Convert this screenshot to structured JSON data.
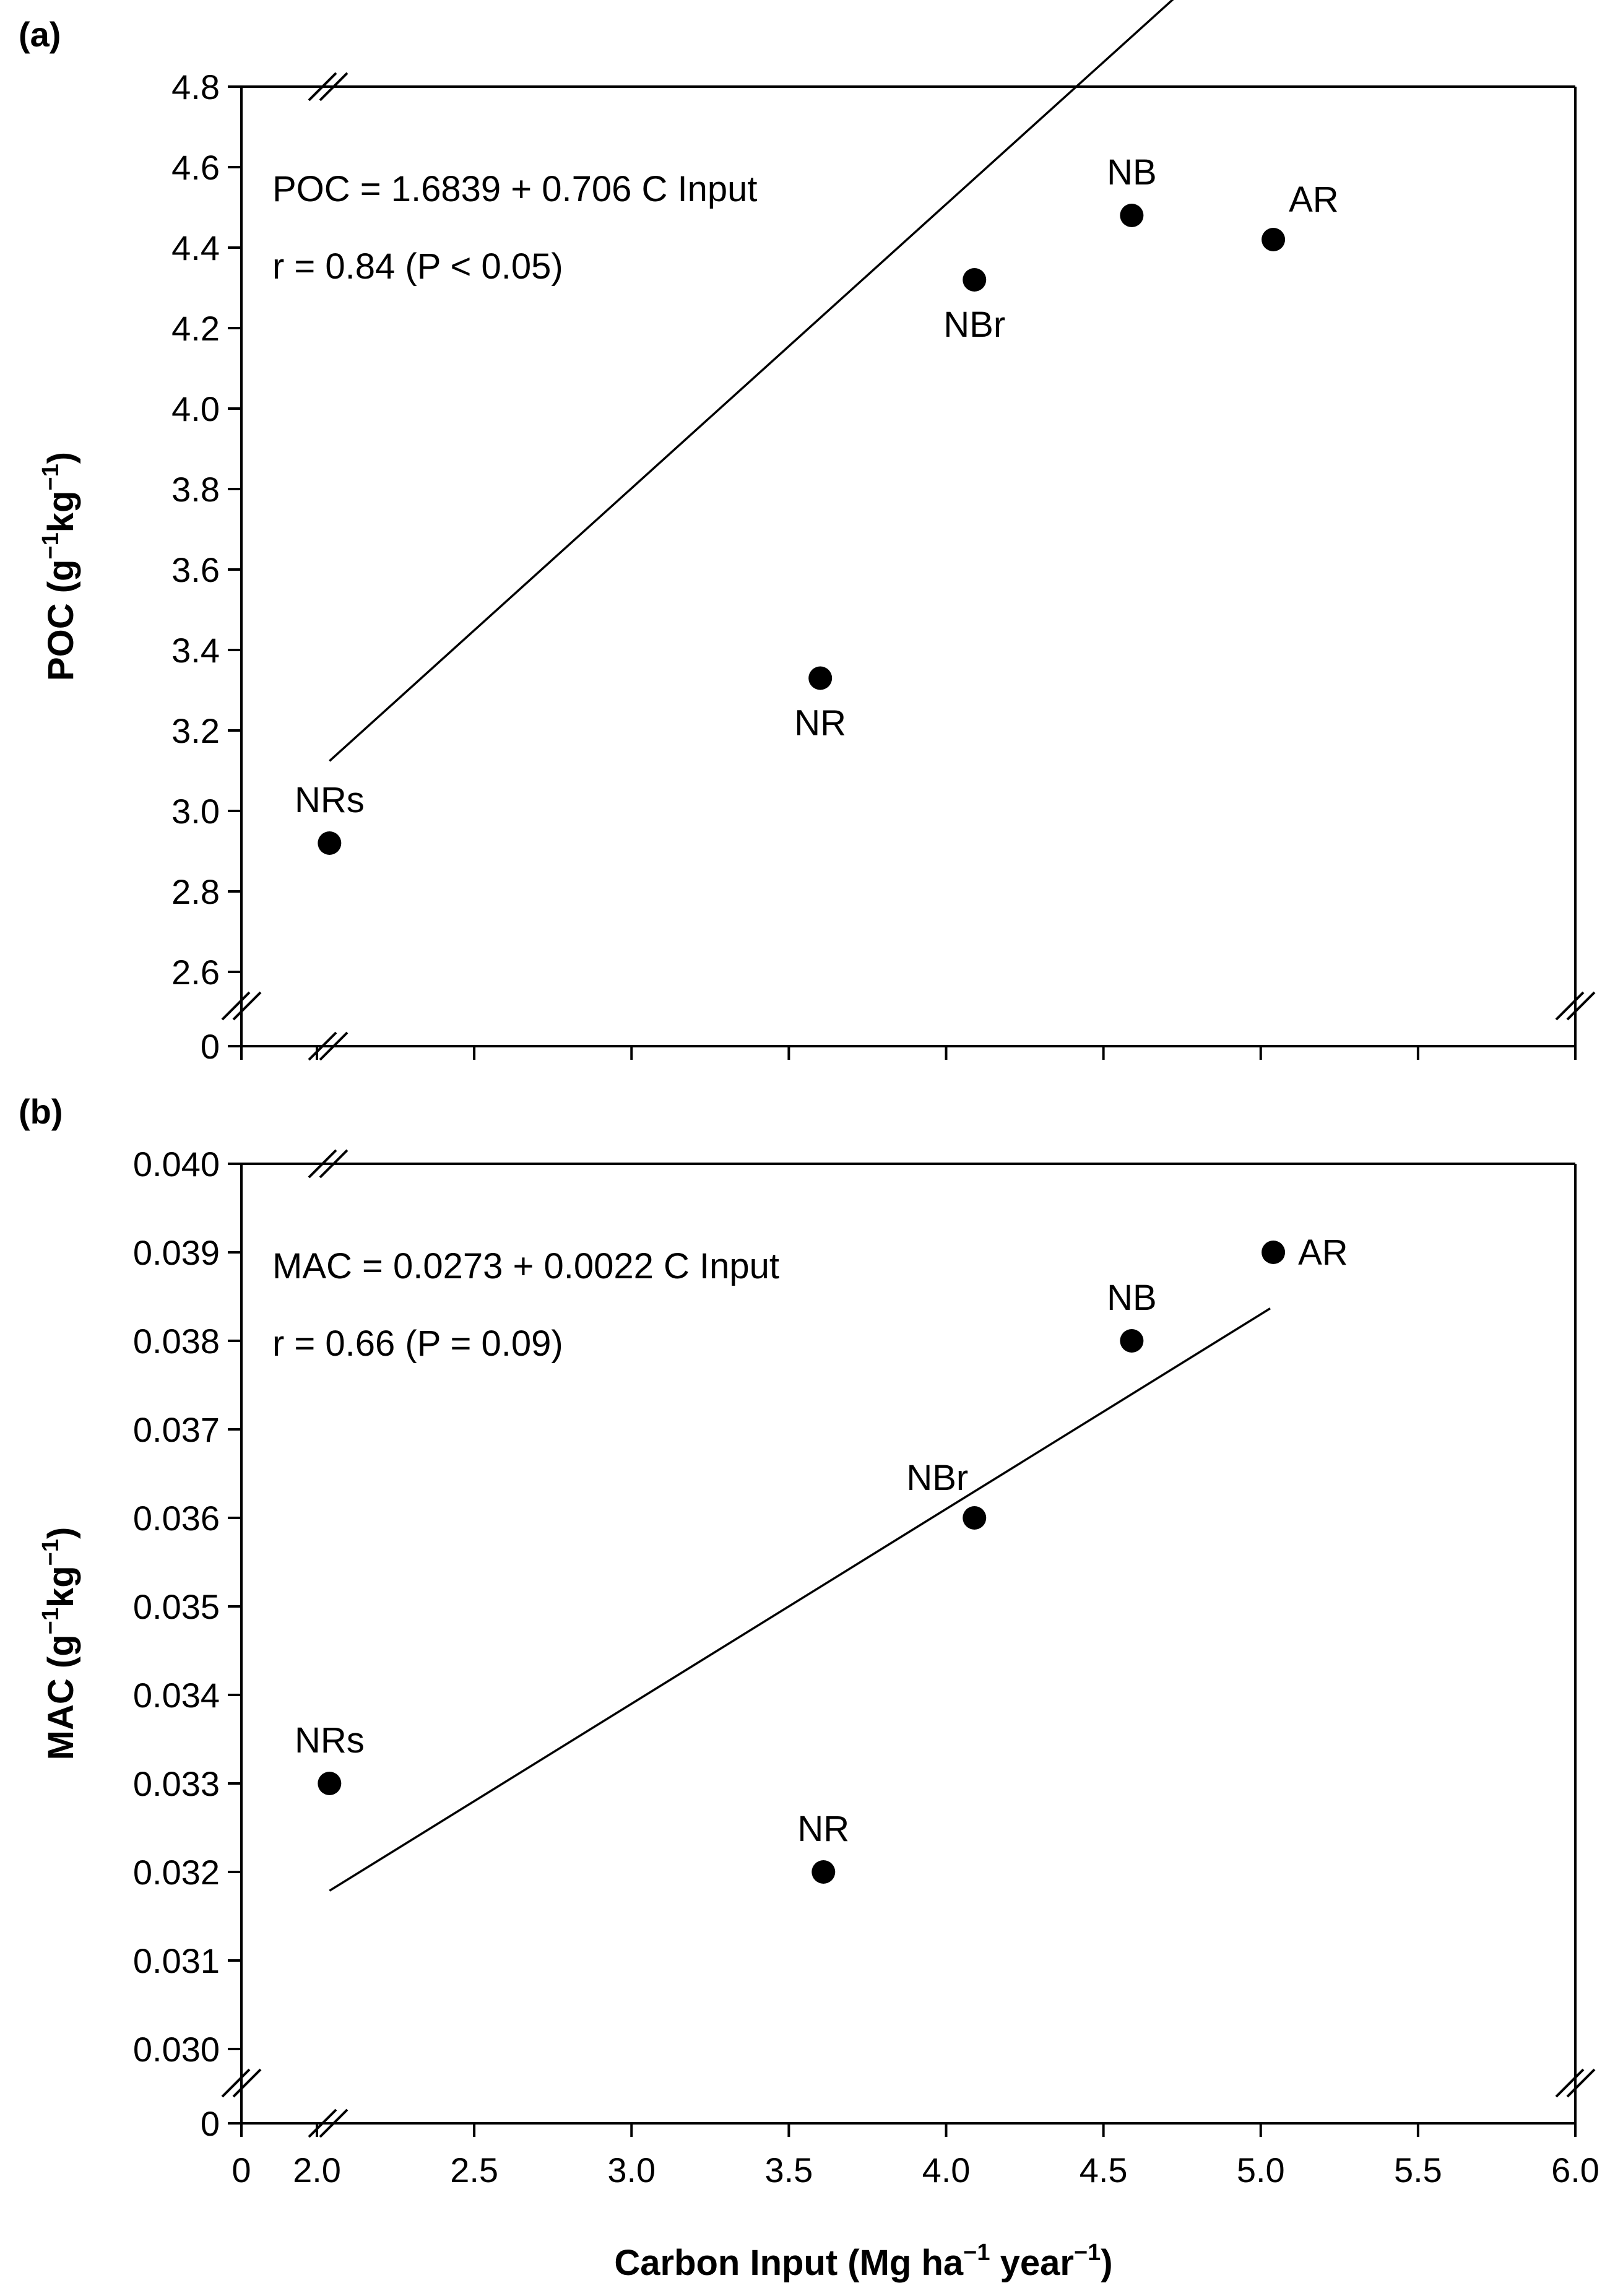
{
  "figure": {
    "xlabel_main": "Carbon Input (Mg ha",
    "xlabel_sup1": "−1",
    "xlabel_mid": " year",
    "xlabel_sup2": "−1",
    "xlabel_end": ")"
  },
  "chart_data": [
    {
      "type": "scatter",
      "panel_label": "(a)",
      "ylabel_main": "POC (g",
      "ylabel_sup1": "−1",
      "ylabel_mid": "kg",
      "ylabel_sup2": "−1",
      "ylabel_end": ")",
      "ylim": [
        2.6,
        4.8
      ],
      "yticks": [
        2.6,
        2.8,
        3.0,
        3.2,
        3.4,
        3.6,
        3.8,
        4.0,
        4.2,
        4.4,
        4.6,
        4.8
      ],
      "ytick_labels": [
        "2.6",
        "2.8",
        "3.0",
        "3.2",
        "3.4",
        "3.6",
        "3.8",
        "4.0",
        "4.2",
        "4.4",
        "4.6",
        "4.8"
      ],
      "y_break_label": "0",
      "xlim": [
        2.0,
        6.0
      ],
      "equation": "POC = 1.6839 + 0.706 C Input",
      "stat": "r = 0.84 (P < 0.05)",
      "fit": {
        "intercept": 1.6839,
        "slope": 0.706,
        "x_range": [
          2.04,
          5.03
        ]
      },
      "points": [
        {
          "label": "NRs",
          "x": 2.04,
          "y": 2.92,
          "label_pos": "above"
        },
        {
          "label": "NR",
          "x": 3.6,
          "y": 3.33,
          "label_pos": "below"
        },
        {
          "label": "NBr",
          "x": 4.09,
          "y": 4.32,
          "label_pos": "below"
        },
        {
          "label": "NB",
          "x": 4.59,
          "y": 4.48,
          "label_pos": "above"
        },
        {
          "label": "AR",
          "x": 5.04,
          "y": 4.42,
          "label_pos": "above-right"
        }
      ]
    },
    {
      "type": "scatter",
      "panel_label": "(b)",
      "ylabel_main": "MAC (g",
      "ylabel_sup1": "−1",
      "ylabel_mid": "kg",
      "ylabel_sup2": "−1",
      "ylabel_end": ")",
      "ylim": [
        0.03,
        0.04
      ],
      "yticks": [
        0.03,
        0.031,
        0.032,
        0.033,
        0.034,
        0.035,
        0.036,
        0.037,
        0.038,
        0.039,
        0.04
      ],
      "ytick_labels": [
        "0.030",
        "0.031",
        "0.032",
        "0.033",
        "0.034",
        "0.035",
        "0.036",
        "0.037",
        "0.038",
        "0.039",
        "0.040"
      ],
      "y_break_label": "0",
      "xlim": [
        2.0,
        6.0
      ],
      "xticks": [
        2.0,
        2.5,
        3.0,
        3.5,
        4.0,
        4.5,
        5.0,
        5.5,
        6.0
      ],
      "xtick_labels": [
        "2.0",
        "2.5",
        "3.0",
        "3.5",
        "4.0",
        "4.5",
        "5.0",
        "5.5",
        "6.0"
      ],
      "x_break_label": "0",
      "equation": "MAC = 0.0273 + 0.0022 C Input",
      "stat": "r = 0.66 (P = 0.09)",
      "fit": {
        "intercept": 0.0273,
        "slope": 0.0022,
        "x_range": [
          2.04,
          5.03
        ]
      },
      "points": [
        {
          "label": "NRs",
          "x": 2.04,
          "y": 0.033,
          "label_pos": "above"
        },
        {
          "label": "NR",
          "x": 3.61,
          "y": 0.032,
          "label_pos": "above"
        },
        {
          "label": "NBr",
          "x": 4.09,
          "y": 0.036,
          "label_pos": "above-left"
        },
        {
          "label": "NB",
          "x": 4.59,
          "y": 0.038,
          "label_pos": "above"
        },
        {
          "label": "AR",
          "x": 5.04,
          "y": 0.039,
          "label_pos": "right"
        }
      ]
    }
  ]
}
